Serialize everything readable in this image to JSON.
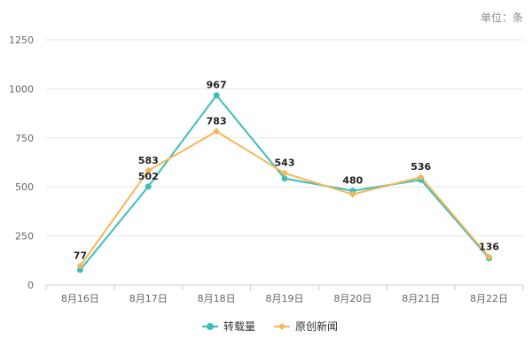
{
  "chart_data": {
    "type": "line",
    "unit_label": "单位：条",
    "categories": [
      "8月16日",
      "8月17日",
      "8月18日",
      "8月19日",
      "8月20日",
      "8月21日",
      "8月22日"
    ],
    "ylim": [
      0,
      1250
    ],
    "yticks": [
      "0",
      "250",
      "500",
      "750",
      "1000",
      "1250"
    ],
    "legend_position": "bottom-center",
    "series": [
      {
        "name": "转载量",
        "color": "#3dbfb7",
        "values": [
          77,
          502,
          967,
          543,
          480,
          536,
          136
        ],
        "labels": [
          "77",
          "502",
          "967",
          "543",
          "480",
          "536",
          "136"
        ]
      },
      {
        "name": "原创新闻",
        "color": "#f5b65b",
        "values": [
          97,
          583,
          783,
          570,
          462,
          550,
          143
        ],
        "labels": [
          "",
          "583",
          "783",
          "",
          "",
          "",
          ""
        ]
      }
    ]
  }
}
